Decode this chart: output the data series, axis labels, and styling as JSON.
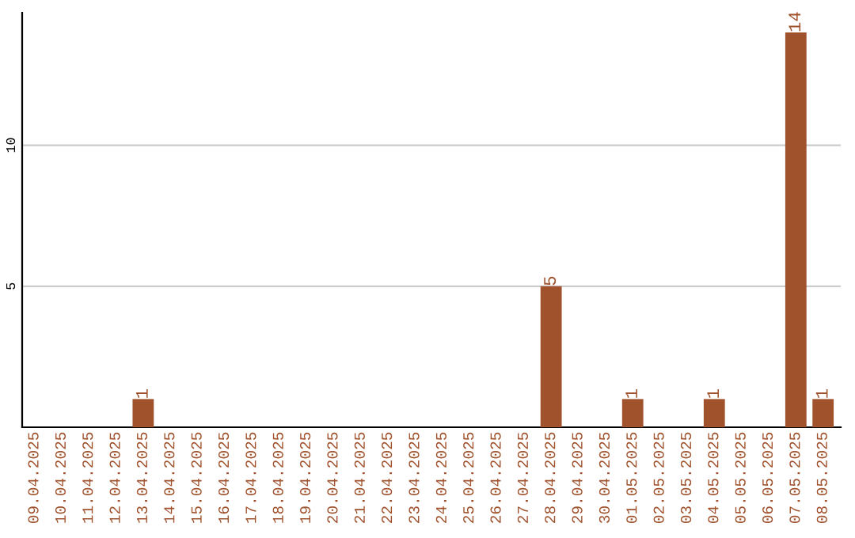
{
  "chart_data": {
    "type": "bar",
    "categories": [
      "09.04.2025",
      "10.04.2025",
      "11.04.2025",
      "12.04.2025",
      "13.04.2025",
      "14.04.2025",
      "15.04.2025",
      "16.04.2025",
      "17.04.2025",
      "18.04.2025",
      "19.04.2025",
      "20.04.2025",
      "21.04.2025",
      "22.04.2025",
      "23.04.2025",
      "24.04.2025",
      "25.04.2025",
      "26.04.2025",
      "27.04.2025",
      "28.04.2025",
      "29.04.2025",
      "30.04.2025",
      "01.05.2025",
      "02.05.2025",
      "03.05.2025",
      "04.05.2025",
      "05.05.2025",
      "06.05.2025",
      "07.05.2025",
      "08.05.2025"
    ],
    "values": [
      0,
      0,
      0,
      0,
      1,
      0,
      0,
      0,
      0,
      0,
      0,
      0,
      0,
      0,
      0,
      0,
      0,
      0,
      0,
      5,
      0,
      0,
      1,
      0,
      0,
      1,
      0,
      0,
      14,
      1
    ],
    "value_labels": [
      null,
      null,
      null,
      null,
      "1",
      null,
      null,
      null,
      null,
      null,
      null,
      null,
      null,
      null,
      null,
      null,
      null,
      null,
      null,
      "5",
      null,
      null,
      "1",
      null,
      null,
      "1",
      null,
      null,
      "14",
      "1"
    ],
    "color": "#a0522d",
    "ylim": [
      0,
      14.7
    ],
    "yticks": [
      5,
      10
    ],
    "grid": "y"
  }
}
